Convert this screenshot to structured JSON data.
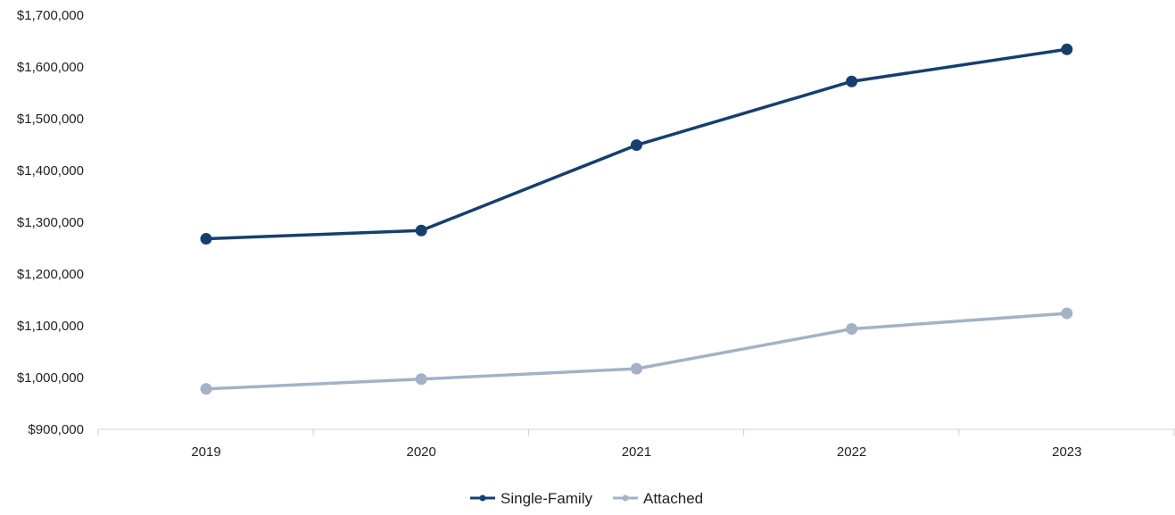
{
  "chart_data": {
    "type": "line",
    "categories": [
      "2019",
      "2020",
      "2021",
      "2022",
      "2023"
    ],
    "series": [
      {
        "name": "Single-Family",
        "values": [
          1268000,
          1284000,
          1449000,
          1572000,
          1634000
        ],
        "color": "#163f6e"
      },
      {
        "name": "Attached",
        "values": [
          978000,
          997000,
          1017000,
          1094000,
          1124000
        ],
        "color": "#a3b2c6"
      }
    ],
    "y_ticks": [
      "$900,000",
      "$1,000,000",
      "$1,100,000",
      "$1,200,000",
      "$1,300,000",
      "$1,400,000",
      "$1,500,000",
      "$1,600,000",
      "$1,700,000"
    ],
    "ylim": [
      900000,
      1700000
    ],
    "grid": false,
    "legend_position": "bottom-center"
  }
}
